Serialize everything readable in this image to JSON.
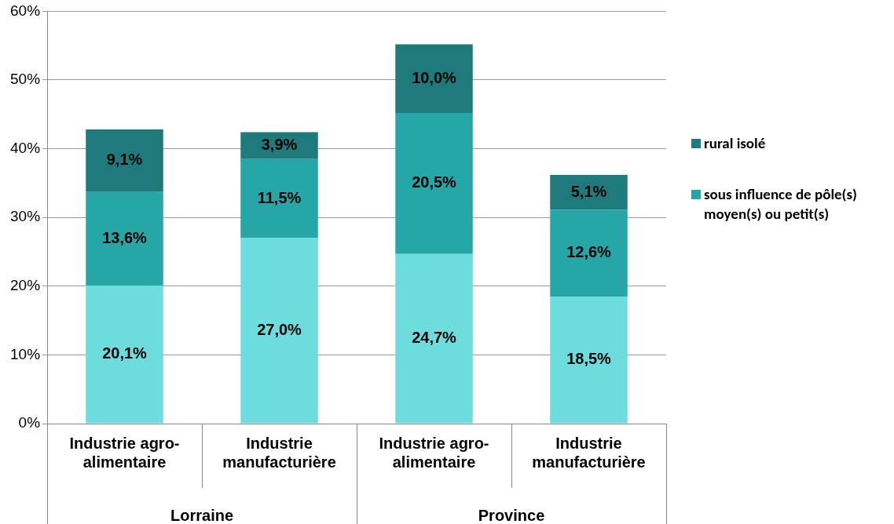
{
  "chart_data": {
    "type": "bar",
    "stacked": true,
    "categories": [
      "Industrie agro-\nalimentaire",
      "Industrie\nmanufacturière",
      "Industrie agro-\nalimentaire",
      "Industrie\nmanufacturière"
    ],
    "annotations": [
      "Lorraine",
      "Province"
    ],
    "series": [
      {
        "color": "#6ddcdc",
        "values": [
          20.1,
          27.0,
          24.7,
          18.5
        ],
        "value_labels": [
          "20,1%",
          "27,0%",
          "24,7%",
          "18,5%"
        ]
      },
      {
        "name": "sous influence de pôle(s) moyen(s) ou petit(s)",
        "color": "#26a6a6",
        "values": [
          13.6,
          11.5,
          20.5,
          12.6
        ],
        "value_labels": [
          "13,6%",
          "11,5%",
          "20,5%",
          "12,6%"
        ]
      },
      {
        "name": "rural isolé",
        "color": "#1f7b7b",
        "values": [
          9.1,
          3.9,
          10.0,
          5.1
        ],
        "value_labels": [
          "9,1%",
          "3,9%",
          "10,0%",
          "5,1%"
        ]
      }
    ],
    "ylim": [
      0,
      60
    ],
    "yticks": [
      {
        "value": 0,
        "label": "0%"
      },
      {
        "value": 10,
        "label": "10%"
      },
      {
        "value": 20,
        "label": "20%"
      },
      {
        "value": 30,
        "label": "30%"
      },
      {
        "value": 40,
        "label": "40%"
      },
      {
        "value": 50,
        "label": "50%"
      },
      {
        "value": 60,
        "label": "60%"
      }
    ],
    "grid": "y",
    "legend": "right"
  }
}
